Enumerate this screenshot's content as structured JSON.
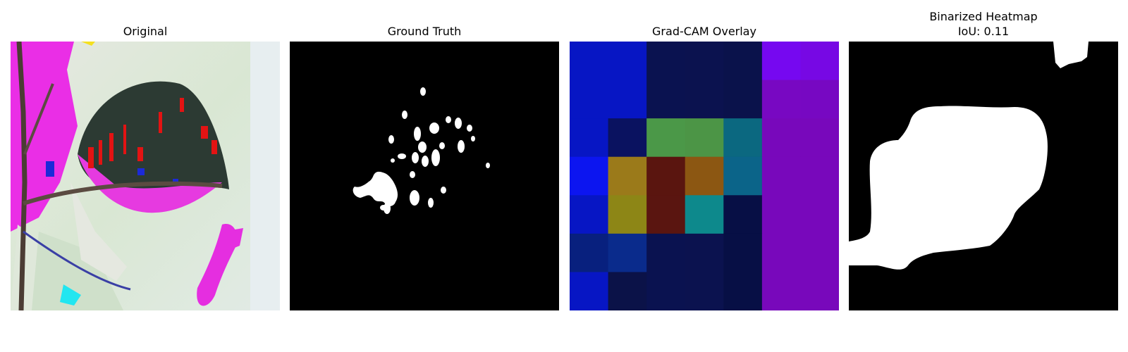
{
  "panels": [
    {
      "title": "Original"
    },
    {
      "title": "Ground Truth"
    },
    {
      "title": "Grad-CAM Overlay"
    },
    {
      "title": "Binarized Heatmap",
      "subtitle": "IoU: 0.11"
    }
  ],
  "gradcam": {
    "grid_rows": 7,
    "grid_cols": 7,
    "cell_colors": [
      [
        "#0716c4",
        "#0716c4",
        "#0a1250",
        "#0b124f",
        "#0a124b",
        "#7608f0",
        "#7708e4"
      ],
      [
        "#0716c4",
        "#0716c4",
        "#0a1250",
        "#0b124f",
        "#0a124b",
        "#7808c2",
        "#7708c2"
      ],
      [
        "#0716c4",
        "#0a1260",
        "#4b9848",
        "#4c9546",
        "#0b6880",
        "#7808bb",
        "#7808bb"
      ],
      [
        "#0c15f0",
        "#9b7a1a",
        "#5a150f",
        "#8c5712",
        "#0b6489",
        "#7808bb",
        "#7808bb"
      ],
      [
        "#0716c4",
        "#8d8616",
        "#5a1510",
        "#0d898c",
        "#070f45",
        "#7808bb",
        "#7808bb"
      ],
      [
        "#08207e",
        "#0a2b8c",
        "#0a1250",
        "#0b124f",
        "#070f45",
        "#7808bb",
        "#7808bb"
      ],
      [
        "#0716c4",
        "#0b1248",
        "#0a1250",
        "#0b124f",
        "#070f45",
        "#7808bb",
        "#7808bb"
      ]
    ]
  }
}
